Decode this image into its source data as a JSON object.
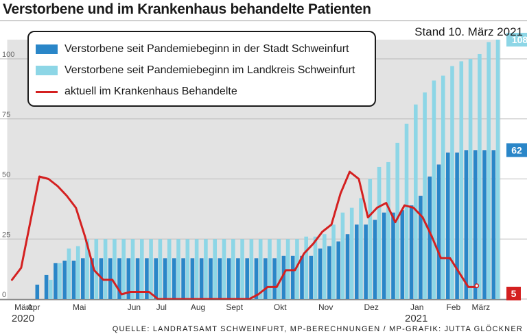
{
  "title": "Verstorbene und im Krankenhaus behandelte Patienten",
  "stand": "Stand 10. März 2021",
  "source": "QUELLE: LANDRATSAMT SCHWEINFURT, MP-BERECHNUNGEN / MP-GRAFIK: JUTTA GLÖCKNER",
  "colors": {
    "stadt": "#2a86c8",
    "landkreis": "#8dd6e6",
    "krankenhaus": "#d42020",
    "background_bar": "#e3e3e3",
    "grid": "#b9b9b9"
  },
  "chart_data": {
    "type": "bar",
    "ylim": [
      0,
      108
    ],
    "yticks": [
      0,
      25,
      50,
      75,
      100
    ],
    "x_tick_labels": [
      "März",
      "Apr",
      "Mai",
      "Jun",
      "Jul",
      "Aug",
      "Sept",
      "Okt",
      "Nov",
      "Dez",
      "Jan",
      "Feb",
      "März"
    ],
    "x_tick_positions": [
      0,
      2,
      7,
      13,
      16,
      20,
      24,
      29,
      34,
      39,
      44,
      48,
      51
    ],
    "year_labels": [
      {
        "label": "2020",
        "position": 0
      },
      {
        "label": "2021",
        "position": 44
      }
    ],
    "series": [
      {
        "name": "Verstorbene seit Pandemiebeginn in der Stadt Schweinfurt",
        "kind": "bar",
        "values": [
          0,
          0,
          0,
          6,
          10,
          15,
          16,
          16,
          17,
          17,
          17,
          17,
          17,
          17,
          17,
          17,
          17,
          17,
          17,
          17,
          17,
          17,
          17,
          17,
          17,
          17,
          17,
          17,
          17,
          17,
          18,
          18,
          18,
          18,
          21,
          22,
          24,
          27,
          31,
          31,
          33,
          36,
          36,
          37,
          39,
          43,
          51,
          56,
          61,
          61,
          62,
          62,
          62,
          62
        ]
      },
      {
        "name": "Verstorbene seit Pandemiebeginn im Landkreis Schweinfurt",
        "kind": "bar",
        "values": [
          0,
          0,
          0,
          0,
          8,
          15,
          21,
          22,
          25,
          25,
          25,
          25,
          25,
          25,
          25,
          25,
          25,
          25,
          25,
          25,
          25,
          25,
          25,
          25,
          25,
          25,
          25,
          25,
          25,
          25,
          25,
          25,
          26,
          26,
          27,
          31,
          36,
          38,
          42,
          50,
          55,
          57,
          65,
          73,
          81,
          86,
          91,
          93,
          97,
          99,
          100,
          102,
          107,
          108
        ]
      },
      {
        "name": "aktuell im Krankenhaus Behandelte",
        "kind": "line",
        "values": [
          8,
          13,
          32,
          51,
          50,
          47,
          43,
          38,
          26,
          12,
          8,
          8,
          2,
          3,
          3,
          3,
          0,
          0,
          0,
          0,
          0,
          0,
          0,
          0,
          0,
          0,
          0,
          2,
          5,
          5,
          12,
          12,
          19,
          23,
          28,
          31,
          44,
          53,
          50,
          34,
          38,
          40,
          32,
          39,
          38,
          34,
          26,
          17,
          17,
          11,
          5,
          5
        ]
      }
    ],
    "end_labels": [
      {
        "series": "Verstorbene seit Pandemiebeginn im Landkreis Schweinfurt",
        "text": "108",
        "value": 108
      },
      {
        "series": "Verstorbene seit Pandemiebeginn in der Stadt Schweinfurt",
        "text": "62",
        "value": 62
      },
      {
        "series": "aktuell im Krankenhaus Behandelte",
        "text": "5",
        "value": 5
      }
    ],
    "grid": true,
    "legend_position": "top-left"
  }
}
